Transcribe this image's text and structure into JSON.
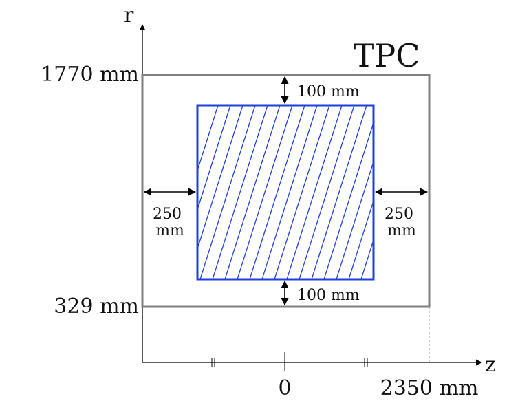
{
  "axes": {
    "r_label": "r",
    "z_label": "z",
    "z_origin_tick": "0",
    "z_end_tick": "2350 mm"
  },
  "tpc": {
    "title": "TPC",
    "outer_radius_label": "1770 mm",
    "inner_radius_label": "329 mm",
    "border_color": "#808080"
  },
  "fiducial": {
    "color": "#1f3fdd",
    "top_gap_label": "100 mm",
    "bottom_gap_label": "100 mm",
    "left_gap_label": [
      "250",
      "mm"
    ],
    "right_gap_label": [
      "250",
      "mm"
    ]
  }
}
